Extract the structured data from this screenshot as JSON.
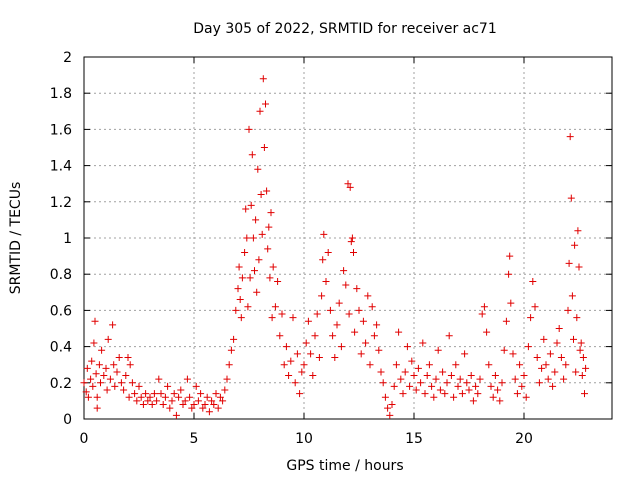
{
  "chart_data": {
    "type": "scatter",
    "title": "Day 305 of 2022, SRMTID for receiver ac71",
    "xlabel": "GPS time / hours",
    "ylabel": "SRMTID / TECUs",
    "xlim": [
      0,
      24
    ],
    "ylim": [
      0,
      2
    ],
    "xticks": [
      "0",
      "5",
      "10",
      "15",
      "20"
    ],
    "yticks": [
      "0",
      "0.2",
      "0.4",
      "0.6",
      "0.8",
      "1",
      "1.2",
      "1.4",
      "1.6",
      "1.8",
      "2"
    ],
    "grid": true,
    "marker": "+",
    "series": [
      {
        "name": "SRMTID",
        "color": "#e00000",
        "points": [
          [
            0.0,
            0.2
          ],
          [
            0.1,
            0.15
          ],
          [
            0.15,
            0.28
          ],
          [
            0.2,
            0.12
          ],
          [
            0.3,
            0.22
          ],
          [
            0.35,
            0.32
          ],
          [
            0.4,
            0.18
          ],
          [
            0.45,
            0.42
          ],
          [
            0.5,
            0.54
          ],
          [
            0.55,
            0.25
          ],
          [
            0.6,
            0.12
          ],
          [
            0.6,
            0.06
          ],
          [
            0.7,
            0.3
          ],
          [
            0.75,
            0.2
          ],
          [
            0.8,
            0.38
          ],
          [
            0.9,
            0.24
          ],
          [
            1.0,
            0.28
          ],
          [
            1.05,
            0.16
          ],
          [
            1.1,
            0.44
          ],
          [
            1.2,
            0.22
          ],
          [
            1.3,
            0.52
          ],
          [
            1.35,
            0.3
          ],
          [
            1.4,
            0.18
          ],
          [
            1.5,
            0.26
          ],
          [
            1.6,
            0.34
          ],
          [
            1.7,
            0.2
          ],
          [
            1.8,
            0.16
          ],
          [
            1.9,
            0.24
          ],
          [
            2.0,
            0.34
          ],
          [
            2.05,
            0.12
          ],
          [
            2.1,
            0.3
          ],
          [
            2.2,
            0.2
          ],
          [
            2.3,
            0.14
          ],
          [
            2.4,
            0.1
          ],
          [
            2.5,
            0.18
          ],
          [
            2.6,
            0.12
          ],
          [
            2.7,
            0.08
          ],
          [
            2.8,
            0.14
          ],
          [
            2.9,
            0.1
          ],
          [
            3.0,
            0.12
          ],
          [
            3.1,
            0.08
          ],
          [
            3.2,
            0.14
          ],
          [
            3.3,
            0.1
          ],
          [
            3.4,
            0.22
          ],
          [
            3.5,
            0.14
          ],
          [
            3.6,
            0.08
          ],
          [
            3.7,
            0.12
          ],
          [
            3.8,
            0.18
          ],
          [
            3.9,
            0.06
          ],
          [
            4.0,
            0.1
          ],
          [
            4.1,
            0.14
          ],
          [
            4.2,
            0.02
          ],
          [
            4.3,
            0.12
          ],
          [
            4.4,
            0.16
          ],
          [
            4.5,
            0.08
          ],
          [
            4.6,
            0.1
          ],
          [
            4.7,
            0.22
          ],
          [
            4.8,
            0.12
          ],
          [
            4.9,
            0.06
          ],
          [
            5.0,
            0.08
          ],
          [
            5.1,
            0.18
          ],
          [
            5.2,
            0.1
          ],
          [
            5.3,
            0.14
          ],
          [
            5.4,
            0.06
          ],
          [
            5.5,
            0.08
          ],
          [
            5.6,
            0.12
          ],
          [
            5.7,
            0.04
          ],
          [
            5.8,
            0.1
          ],
          [
            5.9,
            0.08
          ],
          [
            6.0,
            0.14
          ],
          [
            6.1,
            0.06
          ],
          [
            6.2,
            0.12
          ],
          [
            6.3,
            0.1
          ],
          [
            6.4,
            0.16
          ],
          [
            6.5,
            0.22
          ],
          [
            6.6,
            0.3
          ],
          [
            6.7,
            0.38
          ],
          [
            6.8,
            0.44
          ],
          [
            6.9,
            0.6
          ],
          [
            7.0,
            0.72
          ],
          [
            7.05,
            0.84
          ],
          [
            7.1,
            0.66
          ],
          [
            7.15,
            0.56
          ],
          [
            7.2,
            0.78
          ],
          [
            7.3,
            0.92
          ],
          [
            7.35,
            1.16
          ],
          [
            7.4,
            1.0
          ],
          [
            7.45,
            0.62
          ],
          [
            7.5,
            1.6
          ],
          [
            7.55,
            0.78
          ],
          [
            7.6,
            1.18
          ],
          [
            7.65,
            1.46
          ],
          [
            7.7,
            1.0
          ],
          [
            7.75,
            0.82
          ],
          [
            7.8,
            1.1
          ],
          [
            7.85,
            0.7
          ],
          [
            7.9,
            1.38
          ],
          [
            7.95,
            0.88
          ],
          [
            8.0,
            1.7
          ],
          [
            8.05,
            1.24
          ],
          [
            8.1,
            1.02
          ],
          [
            8.15,
            1.88
          ],
          [
            8.2,
            1.5
          ],
          [
            8.25,
            1.74
          ],
          [
            8.3,
            1.26
          ],
          [
            8.35,
            0.94
          ],
          [
            8.4,
            1.06
          ],
          [
            8.45,
            0.78
          ],
          [
            8.5,
            1.14
          ],
          [
            8.55,
            0.56
          ],
          [
            8.6,
            0.84
          ],
          [
            8.7,
            0.62
          ],
          [
            8.8,
            0.76
          ],
          [
            8.9,
            0.46
          ],
          [
            9.0,
            0.58
          ],
          [
            9.1,
            0.3
          ],
          [
            9.2,
            0.4
          ],
          [
            9.3,
            0.24
          ],
          [
            9.4,
            0.32
          ],
          [
            9.5,
            0.56
          ],
          [
            9.6,
            0.2
          ],
          [
            9.7,
            0.36
          ],
          [
            9.8,
            0.14
          ],
          [
            9.9,
            0.26
          ],
          [
            10.0,
            0.3
          ],
          [
            10.1,
            0.42
          ],
          [
            10.2,
            0.54
          ],
          [
            10.3,
            0.36
          ],
          [
            10.4,
            0.24
          ],
          [
            10.5,
            0.46
          ],
          [
            10.6,
            0.58
          ],
          [
            10.7,
            0.34
          ],
          [
            10.8,
            0.68
          ],
          [
            10.85,
            0.88
          ],
          [
            10.9,
            1.02
          ],
          [
            11.0,
            0.76
          ],
          [
            11.1,
            0.92
          ],
          [
            11.2,
            0.6
          ],
          [
            11.3,
            0.46
          ],
          [
            11.4,
            0.34
          ],
          [
            11.5,
            0.52
          ],
          [
            11.6,
            0.64
          ],
          [
            11.7,
            0.4
          ],
          [
            11.8,
            0.82
          ],
          [
            11.9,
            0.74
          ],
          [
            12.0,
            1.3
          ],
          [
            12.05,
            0.58
          ],
          [
            12.1,
            1.28
          ],
          [
            12.15,
            0.98
          ],
          [
            12.2,
            1.0
          ],
          [
            12.25,
            0.92
          ],
          [
            12.3,
            0.48
          ],
          [
            12.4,
            0.72
          ],
          [
            12.5,
            0.6
          ],
          [
            12.6,
            0.36
          ],
          [
            12.7,
            0.54
          ],
          [
            12.8,
            0.42
          ],
          [
            12.9,
            0.68
          ],
          [
            13.0,
            0.3
          ],
          [
            13.1,
            0.62
          ],
          [
            13.2,
            0.46
          ],
          [
            13.3,
            0.52
          ],
          [
            13.4,
            0.38
          ],
          [
            13.5,
            0.26
          ],
          [
            13.6,
            0.2
          ],
          [
            13.7,
            0.12
          ],
          [
            13.8,
            0.06
          ],
          [
            13.9,
            0.02
          ],
          [
            14.0,
            0.08
          ],
          [
            14.1,
            0.18
          ],
          [
            14.2,
            0.3
          ],
          [
            14.3,
            0.48
          ],
          [
            14.4,
            0.22
          ],
          [
            14.5,
            0.14
          ],
          [
            14.6,
            0.26
          ],
          [
            14.7,
            0.4
          ],
          [
            14.8,
            0.18
          ],
          [
            14.9,
            0.32
          ],
          [
            15.0,
            0.24
          ],
          [
            15.1,
            0.16
          ],
          [
            15.2,
            0.28
          ],
          [
            15.3,
            0.2
          ],
          [
            15.4,
            0.42
          ],
          [
            15.5,
            0.14
          ],
          [
            15.6,
            0.24
          ],
          [
            15.7,
            0.3
          ],
          [
            15.8,
            0.18
          ],
          [
            15.9,
            0.12
          ],
          [
            16.0,
            0.22
          ],
          [
            16.1,
            0.38
          ],
          [
            16.2,
            0.16
          ],
          [
            16.3,
            0.26
          ],
          [
            16.4,
            0.14
          ],
          [
            16.5,
            0.2
          ],
          [
            16.6,
            0.46
          ],
          [
            16.7,
            0.24
          ],
          [
            16.8,
            0.12
          ],
          [
            16.9,
            0.3
          ],
          [
            17.0,
            0.18
          ],
          [
            17.1,
            0.22
          ],
          [
            17.2,
            0.14
          ],
          [
            17.3,
            0.36
          ],
          [
            17.4,
            0.2
          ],
          [
            17.5,
            0.16
          ],
          [
            17.6,
            0.24
          ],
          [
            17.7,
            0.1
          ],
          [
            17.8,
            0.18
          ],
          [
            17.9,
            0.14
          ],
          [
            18.0,
            0.22
          ],
          [
            18.1,
            0.58
          ],
          [
            18.2,
            0.62
          ],
          [
            18.3,
            0.48
          ],
          [
            18.4,
            0.3
          ],
          [
            18.5,
            0.18
          ],
          [
            18.6,
            0.12
          ],
          [
            18.7,
            0.24
          ],
          [
            18.8,
            0.16
          ],
          [
            18.9,
            0.1
          ],
          [
            19.0,
            0.2
          ],
          [
            19.1,
            0.38
          ],
          [
            19.2,
            0.54
          ],
          [
            19.3,
            0.8
          ],
          [
            19.35,
            0.9
          ],
          [
            19.4,
            0.64
          ],
          [
            19.5,
            0.36
          ],
          [
            19.6,
            0.22
          ],
          [
            19.7,
            0.14
          ],
          [
            19.8,
            0.3
          ],
          [
            19.9,
            0.18
          ],
          [
            20.0,
            0.24
          ],
          [
            20.1,
            0.12
          ],
          [
            20.2,
            0.4
          ],
          [
            20.3,
            0.56
          ],
          [
            20.4,
            0.76
          ],
          [
            20.5,
            0.62
          ],
          [
            20.6,
            0.34
          ],
          [
            20.7,
            0.2
          ],
          [
            20.8,
            0.28
          ],
          [
            20.9,
            0.44
          ],
          [
            21.0,
            0.3
          ],
          [
            21.1,
            0.22
          ],
          [
            21.2,
            0.36
          ],
          [
            21.3,
            0.18
          ],
          [
            21.4,
            0.26
          ],
          [
            21.5,
            0.42
          ],
          [
            21.6,
            0.5
          ],
          [
            21.7,
            0.34
          ],
          [
            21.8,
            0.22
          ],
          [
            21.9,
            0.3
          ],
          [
            22.0,
            0.6
          ],
          [
            22.05,
            0.86
          ],
          [
            22.1,
            1.56
          ],
          [
            22.15,
            1.22
          ],
          [
            22.2,
            0.68
          ],
          [
            22.25,
            0.44
          ],
          [
            22.3,
            0.96
          ],
          [
            22.35,
            0.26
          ],
          [
            22.4,
            0.56
          ],
          [
            22.45,
            1.04
          ],
          [
            22.5,
            0.84
          ],
          [
            22.55,
            0.38
          ],
          [
            22.6,
            0.42
          ],
          [
            22.65,
            0.24
          ],
          [
            22.7,
            0.34
          ],
          [
            22.75,
            0.14
          ],
          [
            22.8,
            0.28
          ]
        ]
      }
    ]
  }
}
